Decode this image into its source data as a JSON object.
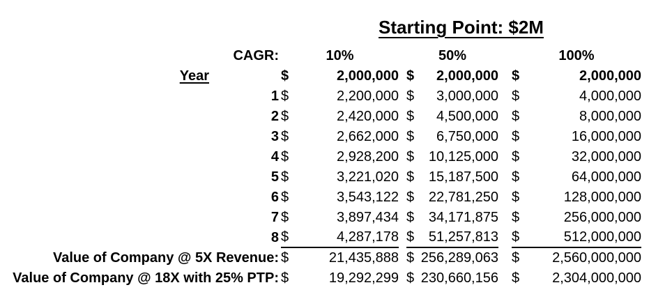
{
  "title": "Starting Point: $2M",
  "table": {
    "cagr_label": "CAGR:",
    "year_label": "Year",
    "currency_symbol": "$",
    "cagr_columns": [
      "10%",
      "50%",
      "100%"
    ],
    "start_values": [
      "2,000,000",
      "2,000,000",
      "2,000,000"
    ],
    "rows": [
      {
        "year": "1",
        "values": [
          "2,200,000",
          "3,000,000",
          "4,000,000"
        ]
      },
      {
        "year": "2",
        "values": [
          "2,420,000",
          "4,500,000",
          "8,000,000"
        ]
      },
      {
        "year": "3",
        "values": [
          "2,662,000",
          "6,750,000",
          "16,000,000"
        ]
      },
      {
        "year": "4",
        "values": [
          "2,928,200",
          "10,125,000",
          "32,000,000"
        ]
      },
      {
        "year": "5",
        "values": [
          "3,221,020",
          "15,187,500",
          "64,000,000"
        ]
      },
      {
        "year": "6",
        "values": [
          "3,543,122",
          "22,781,250",
          "128,000,000"
        ]
      },
      {
        "year": "7",
        "values": [
          "3,897,434",
          "34,171,875",
          "256,000,000"
        ]
      },
      {
        "year": "8",
        "values": [
          "4,287,178",
          "51,257,813",
          "512,000,000"
        ]
      }
    ],
    "summary_rows": [
      {
        "label": "Value of Company @ 5X Revenue:",
        "values": [
          "21,435,888",
          "256,289,063",
          "2,560,000,000"
        ]
      },
      {
        "label": "Value of Company @ 18X with 25% PTP:",
        "values": [
          "19,292,299",
          "230,660,156",
          "2,304,000,000"
        ]
      }
    ]
  },
  "colors": {
    "text": "#000000",
    "background": "#ffffff"
  }
}
